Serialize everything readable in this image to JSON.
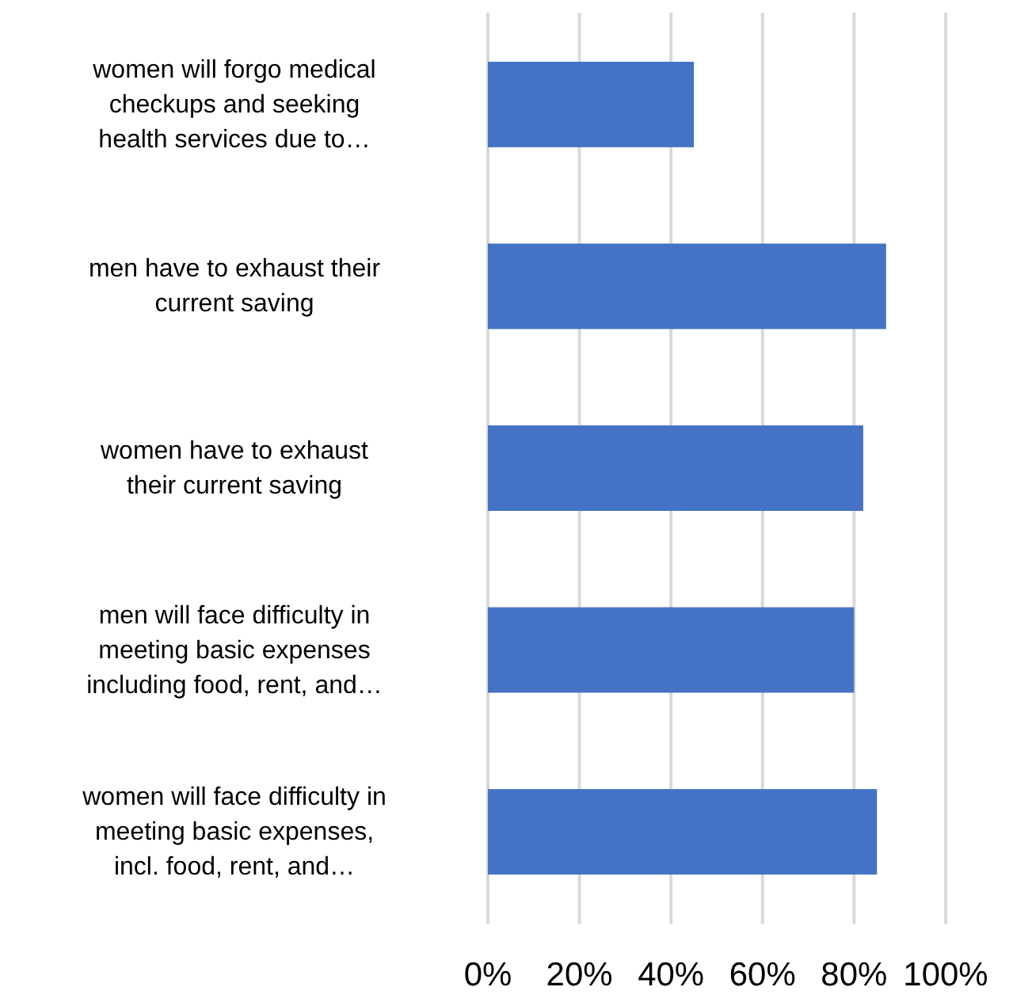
{
  "chart_data": {
    "type": "bar",
    "orientation": "horizontal",
    "categories": [
      "women will forgo medical\ncheckups and seeking\nhealth services due to…",
      "men have to exhaust their\ncurrent saving",
      "women have to exhaust\ntheir current saving",
      "men will face difficulty in\nmeeting basic expenses\nincluding food, rent, and…",
      "women will face difficulty in\nmeeting basic expenses,\nincl. food, rent, and…"
    ],
    "values": [
      45,
      87,
      82,
      80,
      85
    ],
    "color": "#4472c4",
    "xlim": [
      0,
      100
    ],
    "xticks": [
      {
        "value": 0,
        "label": "0%"
      },
      {
        "value": 20,
        "label": "20%"
      },
      {
        "value": 40,
        "label": "40%"
      },
      {
        "value": 60,
        "label": "60%"
      },
      {
        "value": 80,
        "label": "80%"
      },
      {
        "value": 100,
        "label": "100%"
      }
    ],
    "grid": "x"
  }
}
